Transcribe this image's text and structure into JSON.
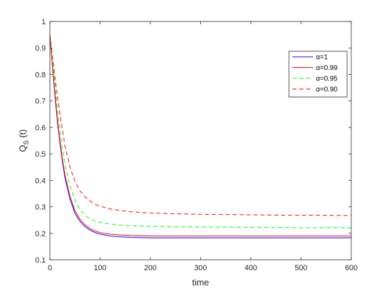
{
  "chart_data": {
    "type": "line",
    "title": "",
    "xlabel": "time",
    "ylabel": "Q",
    "ylabel_subscript": "S",
    "ylabel_suffix": " (t)",
    "xlim": [
      0,
      600
    ],
    "ylim": [
      0.1,
      1
    ],
    "xticks": [
      0,
      100,
      200,
      300,
      400,
      500,
      600
    ],
    "yticks": [
      0.1,
      0.2,
      0.3,
      0.4,
      0.5,
      0.6,
      0.7,
      0.8,
      0.9,
      1
    ],
    "ytick_labels": [
      "0.1",
      "0.2",
      "0.3",
      "0.4",
      "0.5",
      "0.6",
      "0.7",
      "0.8",
      "0.9",
      "1"
    ],
    "grid": false,
    "legend_position": "top-right",
    "series": [
      {
        "name": "α=1",
        "color": "#0000ff",
        "dash": "solid",
        "x": [
          0,
          5,
          10,
          15,
          20,
          25,
          30,
          40,
          50,
          60,
          70,
          80,
          90,
          100,
          120,
          140,
          160,
          180,
          200,
          250,
          300,
          350,
          400,
          450,
          500,
          550,
          600
        ],
        "y": [
          0.95,
          0.83,
          0.72,
          0.62,
          0.54,
          0.47,
          0.41,
          0.33,
          0.275,
          0.245,
          0.225,
          0.212,
          0.203,
          0.197,
          0.19,
          0.187,
          0.185,
          0.184,
          0.183,
          0.183,
          0.183,
          0.183,
          0.183,
          0.183,
          0.183,
          0.183,
          0.183
        ]
      },
      {
        "name": "α=0.99",
        "color": "#ff0000",
        "dash": "solid",
        "x": [
          0,
          5,
          10,
          15,
          20,
          25,
          30,
          40,
          50,
          60,
          70,
          80,
          90,
          100,
          120,
          140,
          160,
          180,
          200,
          250,
          300,
          350,
          400,
          450,
          500,
          550,
          600
        ],
        "y": [
          0.95,
          0.835,
          0.73,
          0.63,
          0.55,
          0.48,
          0.42,
          0.34,
          0.285,
          0.253,
          0.232,
          0.218,
          0.209,
          0.203,
          0.197,
          0.194,
          0.192,
          0.191,
          0.19,
          0.19,
          0.19,
          0.19,
          0.19,
          0.19,
          0.19,
          0.19,
          0.19
        ]
      },
      {
        "name": "α=0.95",
        "color": "#00ff00",
        "dash": "dashed",
        "x": [
          0,
          5,
          10,
          15,
          20,
          25,
          30,
          40,
          50,
          60,
          70,
          80,
          90,
          100,
          120,
          140,
          160,
          180,
          200,
          250,
          300,
          350,
          400,
          450,
          500,
          550,
          600
        ],
        "y": [
          0.95,
          0.85,
          0.76,
          0.67,
          0.59,
          0.52,
          0.46,
          0.38,
          0.325,
          0.29,
          0.268,
          0.255,
          0.247,
          0.241,
          0.235,
          0.231,
          0.229,
          0.228,
          0.227,
          0.225,
          0.224,
          0.223,
          0.222,
          0.222,
          0.221,
          0.221,
          0.221
        ]
      },
      {
        "name": "α=0.90",
        "color": "#ff0000",
        "dash": "dashed",
        "x": [
          0,
          5,
          10,
          15,
          20,
          25,
          30,
          40,
          50,
          60,
          70,
          80,
          90,
          100,
          120,
          140,
          160,
          180,
          200,
          250,
          300,
          350,
          400,
          450,
          500,
          550,
          600
        ],
        "y": [
          0.95,
          0.87,
          0.79,
          0.72,
          0.65,
          0.59,
          0.53,
          0.45,
          0.395,
          0.36,
          0.338,
          0.322,
          0.31,
          0.302,
          0.292,
          0.286,
          0.282,
          0.279,
          0.277,
          0.274,
          0.272,
          0.271,
          0.27,
          0.269,
          0.268,
          0.268,
          0.267
        ]
      }
    ]
  }
}
